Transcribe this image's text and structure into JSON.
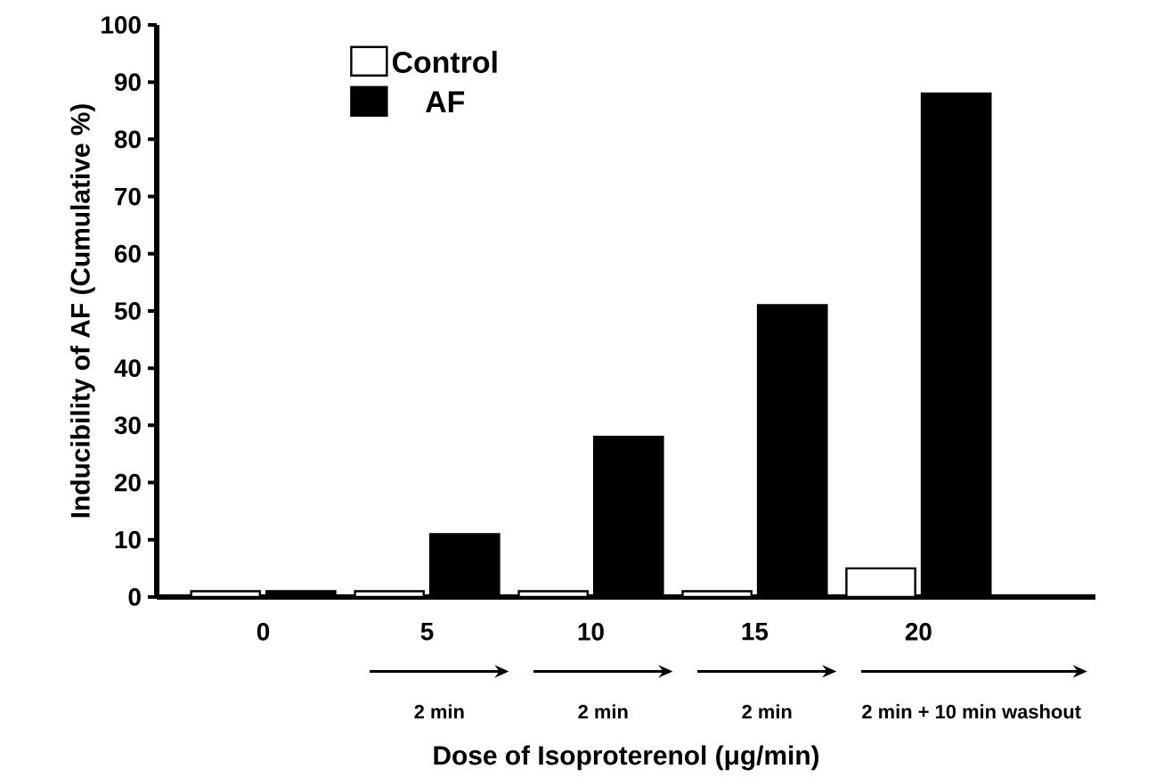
{
  "chart_data": {
    "type": "bar",
    "xlabel": "Dose of Isoproterenol (μg/min)",
    "ylabel": "Inducibility of AF (Cumulative %)",
    "categories": [
      "0",
      "5",
      "10",
      "15",
      "20"
    ],
    "series": [
      {
        "name": "Control",
        "color": "#ffffff",
        "values": [
          1,
          1,
          1,
          1,
          5
        ]
      },
      {
        "name": "AF",
        "color": "#000000",
        "values": [
          1,
          11,
          28,
          51,
          88
        ]
      }
    ],
    "ylim": [
      0,
      100
    ],
    "yticks": [
      0,
      10,
      20,
      30,
      40,
      50,
      60,
      70,
      80,
      90,
      100
    ],
    "legend": "top left",
    "grid": false,
    "annotations": [
      "2 min",
      "2 min",
      "2 min",
      "2 min + 10 min washout"
    ]
  }
}
